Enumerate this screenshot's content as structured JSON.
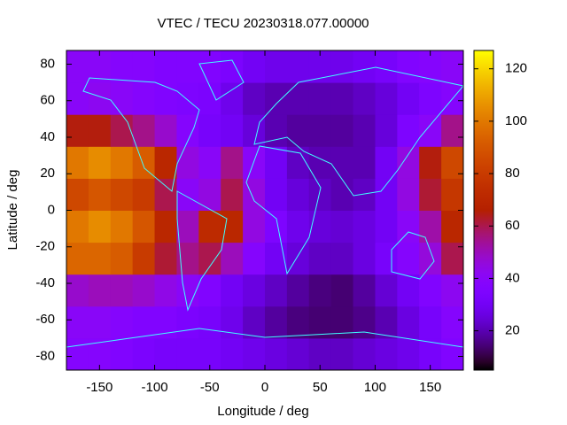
{
  "chart_data": {
    "type": "heatmap",
    "title": "VTEC / TECU 20230318.077.00000",
    "x_label": "Longitude / deg",
    "y_label": "Latitude / deg",
    "x_bins": [
      -180,
      -160,
      -140,
      -120,
      -100,
      -80,
      -60,
      -40,
      -20,
      0,
      20,
      40,
      60,
      80,
      100,
      120,
      140,
      160,
      180
    ],
    "y_bins": [
      -87.5,
      -70,
      -52.5,
      -35,
      -17.5,
      0,
      17.5,
      35,
      52.5,
      70,
      87.5
    ],
    "z": [
      [
        38,
        38,
        36,
        34,
        32,
        32,
        32,
        30,
        28,
        26,
        24,
        22,
        22,
        24,
        26,
        28,
        32,
        36
      ],
      [
        40,
        40,
        38,
        36,
        36,
        34,
        32,
        28,
        22,
        18,
        15,
        14,
        14,
        16,
        20,
        26,
        32,
        38
      ],
      [
        48,
        50,
        50,
        48,
        44,
        40,
        36,
        30,
        26,
        22,
        18,
        15,
        14,
        18,
        24,
        30,
        36,
        42
      ],
      [
        95,
        95,
        92,
        80,
        62,
        55,
        60,
        50,
        38,
        30,
        25,
        22,
        22,
        26,
        32,
        38,
        46,
        60
      ],
      [
        100,
        105,
        100,
        90,
        70,
        50,
        72,
        70,
        45,
        35,
        28,
        25,
        24,
        26,
        30,
        40,
        52,
        70
      ],
      [
        85,
        90,
        85,
        80,
        60,
        40,
        45,
        60,
        45,
        30,
        25,
        22,
        20,
        22,
        30,
        45,
        62,
        78
      ],
      [
        100,
        105,
        100,
        92,
        70,
        45,
        40,
        55,
        40,
        30,
        22,
        20,
        20,
        20,
        30,
        45,
        65,
        85
      ],
      [
        65,
        65,
        60,
        55,
        48,
        38,
        32,
        30,
        25,
        20,
        18,
        18,
        18,
        20,
        25,
        35,
        40,
        55
      ],
      [
        40,
        42,
        40,
        38,
        36,
        35,
        34,
        28,
        22,
        20,
        20,
        20,
        20,
        22,
        25,
        30,
        35,
        38
      ],
      [
        40,
        40,
        38,
        38,
        36,
        36,
        36,
        34,
        30,
        28,
        28,
        28,
        28,
        30,
        32,
        36,
        38,
        40
      ]
    ],
    "xlim": [
      -180,
      180
    ],
    "ylim": [
      -87.5,
      87.5
    ],
    "xticks": [
      -150,
      -100,
      -50,
      0,
      50,
      100,
      150
    ],
    "yticks": [
      -80,
      -60,
      -40,
      -20,
      0,
      20,
      40,
      60,
      80
    ],
    "clim": [
      5,
      127
    ],
    "cticks": [
      20,
      40,
      60,
      80,
      100,
      120
    ],
    "palette_rgbformulae": [
      7,
      5,
      15
    ],
    "coastline_color": "#40ffff"
  }
}
